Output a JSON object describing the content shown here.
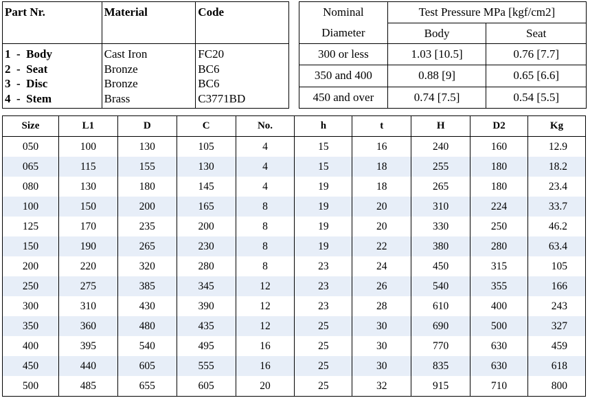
{
  "parts": {
    "headers": [
      "Part Nr.",
      "Material",
      "Code"
    ],
    "rows": [
      {
        "part": "1  -  Body",
        "material": "Cast Iron",
        "code": "FC20"
      },
      {
        "part": "2  -  Seat",
        "material": "Bronze",
        "code": "BC6"
      },
      {
        "part": "3  -  Disc",
        "material": "Bronze",
        "code": "BC6"
      },
      {
        "part": "4  -  Stem",
        "material": "Brass",
        "code": "C3771BD"
      }
    ]
  },
  "pressure": {
    "nominal_label_1": "Nominal",
    "nominal_label_2": "Diameter",
    "test_pressure_label": "Test Pressure MPa [kgf/cm2]",
    "body_label": "Body",
    "seat_label": "Seat",
    "rows": [
      {
        "diameter": "300 or less",
        "body": "1.03 [10.5]",
        "seat": "0.76 [7.7]"
      },
      {
        "diameter": "350 and 400",
        "body": "0.88 [9]",
        "seat": "0.65 [6.6]"
      },
      {
        "diameter": "450 and over",
        "body": "0.74 [7.5]",
        "seat": "0.54 [5.5]"
      }
    ]
  },
  "dimensions": {
    "headers": [
      "Size",
      "L1",
      "D",
      "C",
      "No.",
      "h",
      "t",
      "H",
      "D2",
      "Kg"
    ],
    "rows": [
      [
        "050",
        "100",
        "130",
        "105",
        "4",
        "15",
        "16",
        "240",
        "160",
        "12.9"
      ],
      [
        "065",
        "115",
        "155",
        "130",
        "4",
        "15",
        "18",
        "255",
        "180",
        "18.2"
      ],
      [
        "080",
        "130",
        "180",
        "145",
        "4",
        "19",
        "18",
        "265",
        "180",
        "23.4"
      ],
      [
        "100",
        "150",
        "200",
        "165",
        "8",
        "19",
        "20",
        "310",
        "224",
        "33.7"
      ],
      [
        "125",
        "170",
        "235",
        "200",
        "8",
        "19",
        "20",
        "330",
        "250",
        "46.2"
      ],
      [
        "150",
        "190",
        "265",
        "230",
        "8",
        "19",
        "22",
        "380",
        "280",
        "63.4"
      ],
      [
        "200",
        "220",
        "320",
        "280",
        "8",
        "23",
        "24",
        "450",
        "315",
        "105"
      ],
      [
        "250",
        "275",
        "385",
        "345",
        "12",
        "23",
        "26",
        "540",
        "355",
        "166"
      ],
      [
        "300",
        "310",
        "430",
        "390",
        "12",
        "23",
        "28",
        "610",
        "400",
        "243"
      ],
      [
        "350",
        "360",
        "480",
        "435",
        "12",
        "25",
        "30",
        "690",
        "500",
        "327"
      ],
      [
        "400",
        "395",
        "540",
        "495",
        "16",
        "25",
        "30",
        "770",
        "630",
        "459"
      ],
      [
        "450",
        "440",
        "605",
        "555",
        "16",
        "25",
        "30",
        "835",
        "630",
        "618"
      ],
      [
        "500",
        "485",
        "655",
        "605",
        "20",
        "25",
        "32",
        "915",
        "710",
        "800"
      ]
    ],
    "alt_row_color": "#e7eef8"
  }
}
